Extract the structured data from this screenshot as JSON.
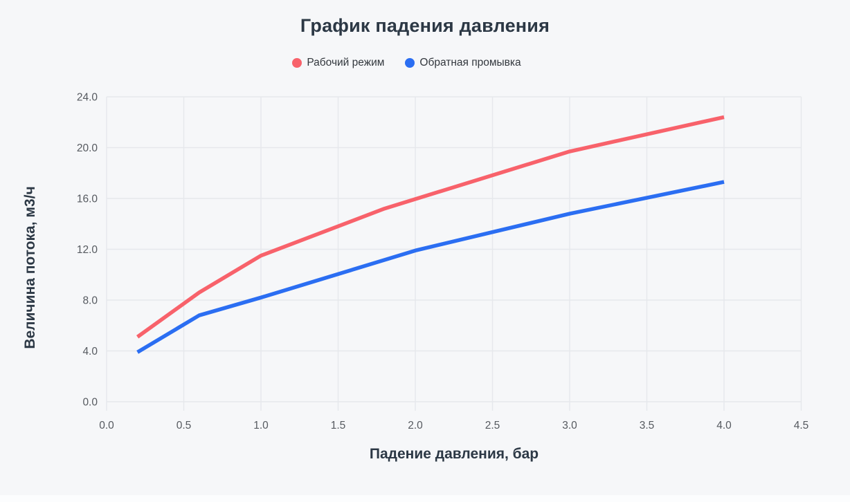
{
  "page": {
    "background": "#f6f7f9",
    "title": "График падения давления"
  },
  "chart_data": {
    "type": "line",
    "title": "График падения давления",
    "xlabel": "Падение давления, бар",
    "ylabel": "Величина потока, м3/ч",
    "xlim": [
      0,
      4.5
    ],
    "ylim": [
      0,
      24
    ],
    "x_tick_labels": [
      "0.0",
      "0.5",
      "1.0",
      "1.5",
      "2.0",
      "2.5",
      "3.0",
      "3.5",
      "4.0",
      "4.5"
    ],
    "y_tick_labels": [
      "0.0",
      "4.0",
      "8.0",
      "12.0",
      "16.0",
      "20.0",
      "24.0"
    ],
    "grid": true,
    "legend_position": "top",
    "grid_color": "#e6e8ec",
    "tick_label_color": "#55595f",
    "series": [
      {
        "name": "Рабочий режим",
        "color": "#f8626b",
        "points": [
          [
            0.2,
            5.1
          ],
          [
            0.6,
            8.6
          ],
          [
            1.0,
            11.5
          ],
          [
            1.8,
            15.2
          ],
          [
            3.0,
            19.7
          ],
          [
            4.0,
            22.4
          ]
        ]
      },
      {
        "name": "Обратная промывка",
        "color": "#2b6ef2",
        "points": [
          [
            0.2,
            3.9
          ],
          [
            0.6,
            6.8
          ],
          [
            1.0,
            8.2
          ],
          [
            2.0,
            11.9
          ],
          [
            3.0,
            14.8
          ],
          [
            4.0,
            17.3
          ]
        ]
      }
    ]
  }
}
